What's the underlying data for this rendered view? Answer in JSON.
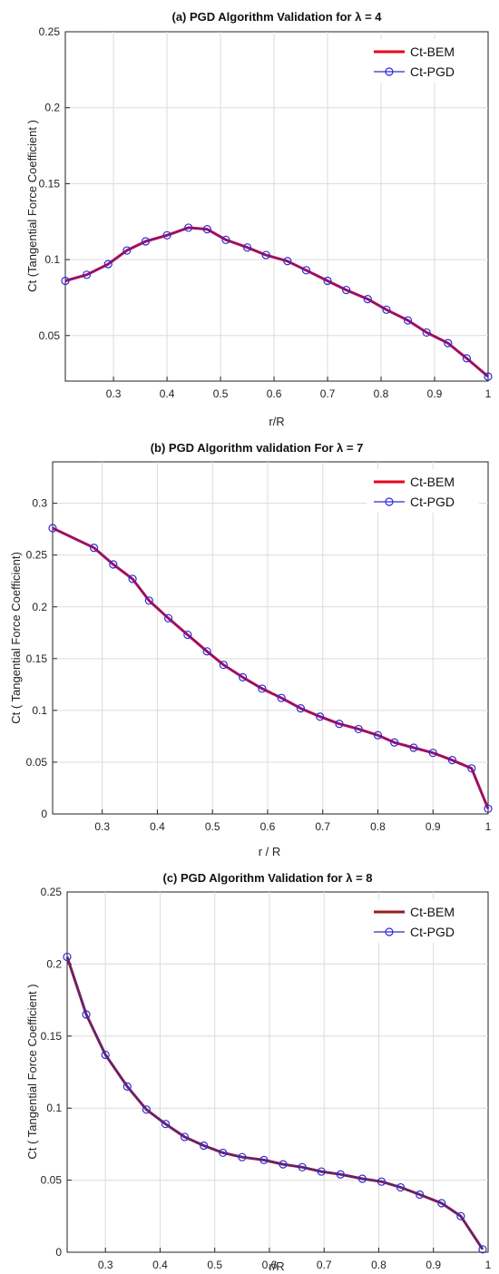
{
  "chart_data": [
    {
      "type": "line",
      "title": "(a) PGD Algorithm Validation for λ = 4",
      "xlabel": "r/R",
      "ylabel": "Ct (Tangential Force Coefficient )",
      "xlim": [
        0.21,
        1.0
      ],
      "ylim": [
        0.02,
        0.25
      ],
      "x_ticks": [
        "0.3",
        "0.4",
        "0.5",
        "0.6",
        "0.7",
        "0.8",
        "0.9",
        "1"
      ],
      "y_ticks": [
        "0.05",
        "0.1",
        "0.15",
        "0.2",
        "0.25"
      ],
      "grid": true,
      "legend_position": "top-right",
      "x": [
        0.21,
        0.25,
        0.29,
        0.325,
        0.36,
        0.4,
        0.44,
        0.475,
        0.51,
        0.55,
        0.585,
        0.625,
        0.66,
        0.7,
        0.735,
        0.775,
        0.81,
        0.85,
        0.885,
        0.925,
        0.96,
        1.0
      ],
      "series": [
        {
          "name": "Ct-BEM",
          "color": "#e8001c",
          "style": "line",
          "values": [
            0.086,
            0.09,
            0.097,
            0.106,
            0.112,
            0.116,
            0.121,
            0.12,
            0.113,
            0.108,
            0.103,
            0.099,
            0.093,
            0.086,
            0.08,
            0.074,
            0.067,
            0.06,
            0.052,
            0.045,
            0.035,
            0.023
          ]
        },
        {
          "name": "Ct-PGD",
          "color": "#2b2bd6",
          "style": "line-circle",
          "values": [
            0.086,
            0.09,
            0.097,
            0.106,
            0.112,
            0.116,
            0.121,
            0.12,
            0.113,
            0.108,
            0.103,
            0.099,
            0.093,
            0.086,
            0.08,
            0.074,
            0.067,
            0.06,
            0.052,
            0.045,
            0.035,
            0.023
          ]
        }
      ]
    },
    {
      "type": "line",
      "title": "(b)   PGD Algorithm validation For λ = 7",
      "xlabel": "r / R",
      "ylabel": "Ct ( Tangential Force Coefficient)",
      "xlim": [
        0.21,
        1.0
      ],
      "ylim": [
        0,
        0.34
      ],
      "x_ticks": [
        "0.3",
        "0.4",
        "0.5",
        "0.6",
        "0.7",
        "0.8",
        "0.9",
        "1"
      ],
      "y_ticks": [
        "0",
        "0.05",
        "0.1",
        "0.15",
        "0.2",
        "0.25",
        "0.3"
      ],
      "grid": true,
      "legend_position": "top-right",
      "x": [
        0.21,
        0.285,
        0.32,
        0.355,
        0.385,
        0.42,
        0.455,
        0.49,
        0.52,
        0.555,
        0.59,
        0.625,
        0.66,
        0.695,
        0.73,
        0.765,
        0.8,
        0.83,
        0.865,
        0.9,
        0.935,
        0.97,
        1.0
      ],
      "series": [
        {
          "name": "Ct-BEM",
          "color": "#e8001c",
          "style": "line",
          "values": [
            0.276,
            0.257,
            0.241,
            0.227,
            0.206,
            0.189,
            0.173,
            0.157,
            0.144,
            0.132,
            0.121,
            0.112,
            0.102,
            0.094,
            0.087,
            0.082,
            0.076,
            0.069,
            0.064,
            0.059,
            0.052,
            0.044,
            0.005
          ]
        },
        {
          "name": "Ct-PGD",
          "color": "#2b2bd6",
          "style": "line-circle",
          "values": [
            0.276,
            0.257,
            0.241,
            0.227,
            0.206,
            0.189,
            0.173,
            0.157,
            0.144,
            0.132,
            0.121,
            0.112,
            0.102,
            0.094,
            0.087,
            0.082,
            0.076,
            0.069,
            0.064,
            0.059,
            0.052,
            0.044,
            0.005
          ]
        }
      ]
    },
    {
      "type": "line",
      "title": "(c) PGD Algorithm Validation for λ = 8",
      "xlabel": "r/R",
      "ylabel": "Ct ( Tangential Force Coefficient )",
      "xlim": [
        0.23,
        1.0
      ],
      "ylim": [
        0,
        0.25
      ],
      "x_ticks": [
        "0.3",
        "0.4",
        "0.5",
        "0.6",
        "0.7",
        "0.8",
        "0.9",
        "1"
      ],
      "y_ticks": [
        "0",
        "0.05",
        "0.1",
        "0.15",
        "0.2",
        "0.25"
      ],
      "grid": true,
      "legend_position": "top-right",
      "x": [
        0.23,
        0.265,
        0.3,
        0.34,
        0.375,
        0.41,
        0.445,
        0.48,
        0.515,
        0.55,
        0.59,
        0.625,
        0.66,
        0.695,
        0.73,
        0.77,
        0.805,
        0.84,
        0.875,
        0.915,
        0.95,
        0.99
      ],
      "series": [
        {
          "name": "Ct-BEM",
          "color": "#9b1c1c",
          "style": "line",
          "values": [
            0.205,
            0.165,
            0.137,
            0.115,
            0.099,
            0.089,
            0.08,
            0.074,
            0.069,
            0.066,
            0.064,
            0.061,
            0.059,
            0.056,
            0.054,
            0.051,
            0.049,
            0.045,
            0.04,
            0.034,
            0.025,
            0.002
          ]
        },
        {
          "name": "Ct-PGD",
          "color": "#2b2bd6",
          "style": "line-circle",
          "values": [
            0.205,
            0.165,
            0.137,
            0.115,
            0.099,
            0.089,
            0.08,
            0.074,
            0.069,
            0.066,
            0.064,
            0.061,
            0.059,
            0.056,
            0.054,
            0.051,
            0.049,
            0.045,
            0.04,
            0.034,
            0.025,
            0.002
          ]
        }
      ]
    }
  ]
}
